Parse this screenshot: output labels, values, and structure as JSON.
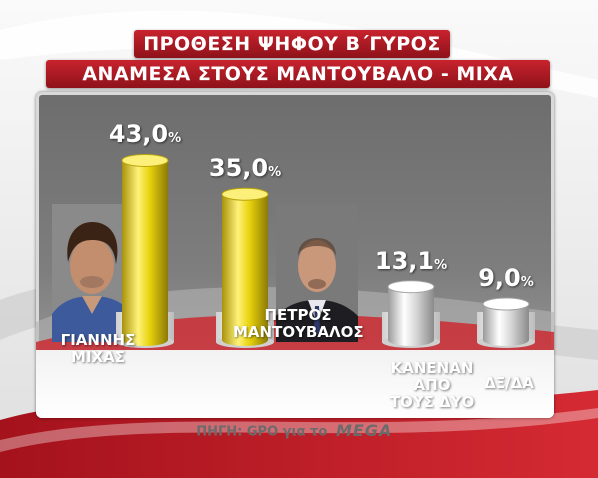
{
  "title_line1": "ΠΡΟΘΕΣΗ ΨΗΦΟΥ Β΄ΓΥΡΟΣ",
  "title_line2": "ΑΝΑΜΕΣΑ ΣΤΟΥΣ ΜΑΝΤΟΥΒΑΛΟ - ΜΙΧΑ",
  "source_text": "ΠΗΓΗ: GPO για το",
  "source_logo_text": "MEGA",
  "colors": {
    "title_bar": "#b01c26",
    "gold_bar": "#e8d20c",
    "silver_bar": "#d8d8d8",
    "panel": "#757575"
  },
  "chart_data": {
    "type": "bar",
    "title": "ΠΡΟΘΕΣΗ ΨΗΦΟΥ Β΄ΓΥΡΟΣ ΑΝΑΜΕΣΑ ΣΤΟΥΣ ΜΑΝΤΟΥΒΑΛΟ - ΜΙΧΑ",
    "categories": [
      [
        "ΓΙΑΝΝΗΣ",
        "ΜΙΧΑΣ"
      ],
      [
        "ΠΕΤΡΟΣ",
        "ΜΑΝΤΟΥΒΑΛΟΣ"
      ],
      [
        "ΚΑΝΕΝΑΝ",
        "ΑΠΟ",
        "ΤΟΥΣ ΔΥΟ"
      ],
      [
        "ΔΞ/ΔΑ"
      ]
    ],
    "values": [
      43.0,
      35.0,
      13.1,
      9.0
    ],
    "value_labels": [
      "43,0",
      "35,0",
      "13,1",
      "9,0"
    ],
    "unit": "%",
    "bar_styles": [
      "gold",
      "gold",
      "silver",
      "silver"
    ],
    "photos": [
      "man-with-curly-hair-photo",
      "bald-man-in-suit-photo",
      null,
      null
    ],
    "ylim": [
      0,
      45
    ],
    "grid": false,
    "legend": "none"
  }
}
